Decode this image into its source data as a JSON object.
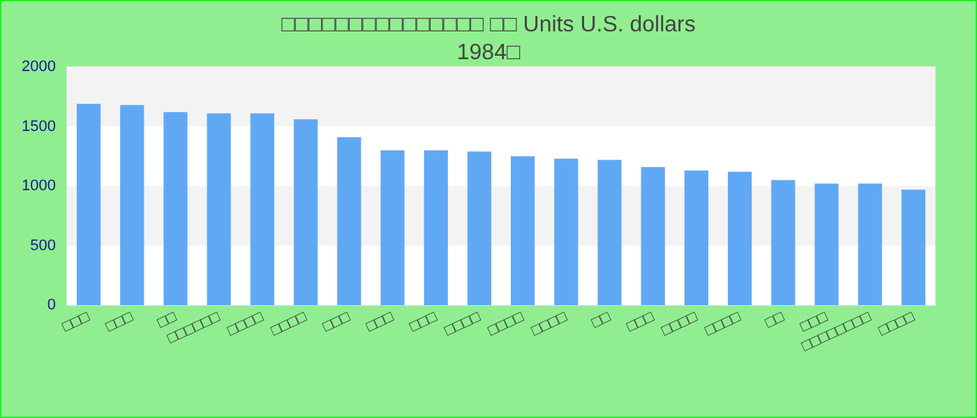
{
  "chart_data": {
    "type": "bar",
    "title": "□□□□□□□□□□□□□□□ □□ Units U.S. dollars\n1984□",
    "categories": [
      "□□□",
      "□□□",
      "□□",
      "□□□□□□",
      "□□□□",
      "□□□□",
      "□□□",
      "□□□",
      "□□□",
      "□□□□",
      "□□□□",
      "□□□□",
      "□□",
      "□□□",
      "□□□□",
      "□□□□",
      "□□",
      "□□□",
      "□□□□□□□□",
      "□□□□"
    ],
    "values": [
      1690,
      1680,
      1620,
      1610,
      1610,
      1560,
      1410,
      1300,
      1300,
      1290,
      1250,
      1230,
      1220,
      1160,
      1130,
      1120,
      1050,
      1020,
      1020,
      970
    ],
    "color": "#61a8f4",
    "ylim": [
      0,
      2000
    ],
    "yticks": [
      0,
      500,
      1000,
      1500,
      2000
    ]
  }
}
